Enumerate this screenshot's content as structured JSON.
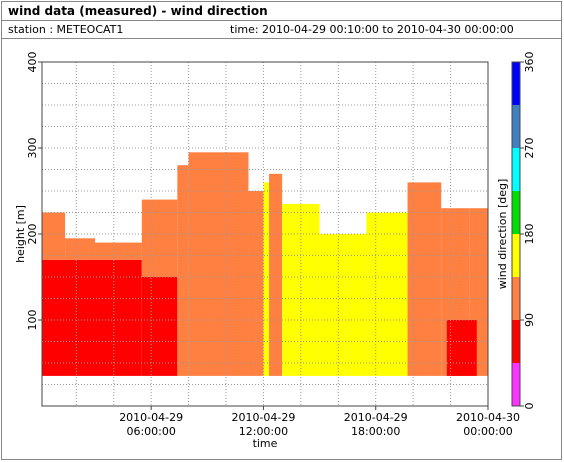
{
  "header": {
    "title": "wind data (measured) - wind direction",
    "station": "station : METEOCAT1",
    "time": "time: 2010-04-29 00:10:00 to 2010-04-30 00:00:00"
  },
  "chart_data": {
    "type": "heatmap",
    "xlabel": "time",
    "ylabel": "height [m]",
    "colorbar_label": "wind direction [deg]",
    "xlim": [
      0.1667,
      24
    ],
    "ylim": [
      0,
      400
    ],
    "xticks": [
      {
        "value": 6,
        "label": "2010-04-29\n06:00:00"
      },
      {
        "value": 12,
        "label": "2010-04-29\n12:00:00"
      },
      {
        "value": 18,
        "label": "2010-04-29\n18:00:00"
      },
      {
        "value": 24,
        "label": "2010-04-30\n00:00:00"
      }
    ],
    "yticks": [
      100,
      200,
      300,
      400
    ],
    "xgrid": [
      2,
      4,
      6,
      8,
      10,
      12,
      14,
      16,
      18,
      20,
      22
    ],
    "ygrid": [
      25,
      50,
      75,
      100,
      125,
      150,
      175,
      200,
      225,
      250,
      275,
      300,
      325,
      350,
      375
    ],
    "clim": [
      0,
      360
    ],
    "cticks": [
      0,
      90,
      180,
      270,
      360
    ],
    "colors": [
      "#ff33ff",
      "#ff0000",
      "#ff8040",
      "#ffff00",
      "#00dd00",
      "#00ffff",
      "#4080c0",
      "#0000ff"
    ],
    "blocks": [
      {
        "x0": 0.1667,
        "x1": 5.5,
        "y0": 35,
        "y1": 170,
        "dir": 70
      },
      {
        "x0": 0.1667,
        "x1": 1.4,
        "y0": 170,
        "y1": 225,
        "dir": 110
      },
      {
        "x0": 1.4,
        "x1": 3.0,
        "y0": 170,
        "y1": 195,
        "dir": 110
      },
      {
        "x0": 3.0,
        "x1": 5.5,
        "y0": 170,
        "y1": 190,
        "dir": 110
      },
      {
        "x0": 5.5,
        "x1": 7.4,
        "y0": 35,
        "y1": 150,
        "dir": 70
      },
      {
        "x0": 5.5,
        "x1": 7.4,
        "y0": 150,
        "y1": 240,
        "dir": 110
      },
      {
        "x0": 7.4,
        "x1": 8.0,
        "y0": 35,
        "y1": 280,
        "dir": 110
      },
      {
        "x0": 8.0,
        "x1": 11.2,
        "y0": 35,
        "y1": 295,
        "dir": 110
      },
      {
        "x0": 11.2,
        "x1": 12.0,
        "y0": 35,
        "y1": 250,
        "dir": 110
      },
      {
        "x0": 12.0,
        "x1": 12.3,
        "y0": 35,
        "y1": 260,
        "dir": 160
      },
      {
        "x0": 12.3,
        "x1": 13.0,
        "y0": 35,
        "y1": 270,
        "dir": 110
      },
      {
        "x0": 13.0,
        "x1": 15.0,
        "y0": 35,
        "y1": 235,
        "dir": 160
      },
      {
        "x0": 15.0,
        "x1": 17.5,
        "y0": 35,
        "y1": 200,
        "dir": 160
      },
      {
        "x0": 17.5,
        "x1": 19.7,
        "y0": 35,
        "y1": 225,
        "dir": 160
      },
      {
        "x0": 19.7,
        "x1": 21.5,
        "y0": 35,
        "y1": 260,
        "dir": 110
      },
      {
        "x0": 21.5,
        "x1": 23.0,
        "y0": 35,
        "y1": 230,
        "dir": 110
      },
      {
        "x0": 23.0,
        "x1": 24.0,
        "y0": 35,
        "y1": 230,
        "dir": 110
      },
      {
        "x0": 21.8,
        "x1": 23.4,
        "y0": 35,
        "y1": 100,
        "dir": 70
      }
    ]
  }
}
